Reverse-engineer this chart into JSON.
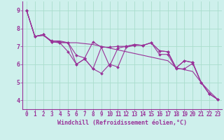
{
  "xlabel": "Windchill (Refroidissement éolien,°C)",
  "background_color": "#cef0ec",
  "plot_bg_color": "#cef0ec",
  "grid_color": "#aaddcc",
  "line_color": "#993399",
  "spine_color": "#993399",
  "tick_color": "#993399",
  "xlim": [
    -0.5,
    23.5
  ],
  "ylim": [
    3.5,
    9.5
  ],
  "yticks": [
    4,
    5,
    6,
    7,
    8,
    9
  ],
  "xticks": [
    0,
    1,
    2,
    3,
    4,
    5,
    6,
    7,
    8,
    9,
    10,
    11,
    12,
    13,
    14,
    15,
    16,
    17,
    18,
    19,
    20,
    21,
    22,
    23
  ],
  "line1_y": [
    9.0,
    7.55,
    7.65,
    7.25,
    7.2,
    7.2,
    6.0,
    6.3,
    5.75,
    6.95,
    5.9,
    6.9,
    7.0,
    7.1,
    7.05,
    7.2,
    6.75,
    6.7,
    5.8,
    6.2,
    6.1,
    5.0,
    4.35,
    4.05
  ],
  "line2_y": [
    9.0,
    7.55,
    7.65,
    7.25,
    7.2,
    6.7,
    6.0,
    6.3,
    5.75,
    5.5,
    6.0,
    5.85,
    6.95,
    7.05,
    7.05,
    7.2,
    6.55,
    6.55,
    5.75,
    5.75,
    6.05,
    5.0,
    4.35,
    4.05
  ],
  "line3_y": [
    9.0,
    7.55,
    7.65,
    7.3,
    7.25,
    7.2,
    6.5,
    6.35,
    7.25,
    6.95,
    6.95,
    7.0,
    7.0,
    7.1,
    7.05,
    7.2,
    6.75,
    6.7,
    5.8,
    6.2,
    6.1,
    5.0,
    4.35,
    4.05
  ],
  "line4_y": [
    9.0,
    7.55,
    7.6,
    7.3,
    7.3,
    7.2,
    7.2,
    7.15,
    7.1,
    7.0,
    6.9,
    6.8,
    6.7,
    6.6,
    6.5,
    6.4,
    6.3,
    6.2,
    5.8,
    5.7,
    5.6,
    5.0,
    4.5,
    4.05
  ],
  "marker_size": 2.0,
  "line_width": 0.8,
  "xlabel_fontsize": 6.0,
  "tick_fontsize": 5.5
}
